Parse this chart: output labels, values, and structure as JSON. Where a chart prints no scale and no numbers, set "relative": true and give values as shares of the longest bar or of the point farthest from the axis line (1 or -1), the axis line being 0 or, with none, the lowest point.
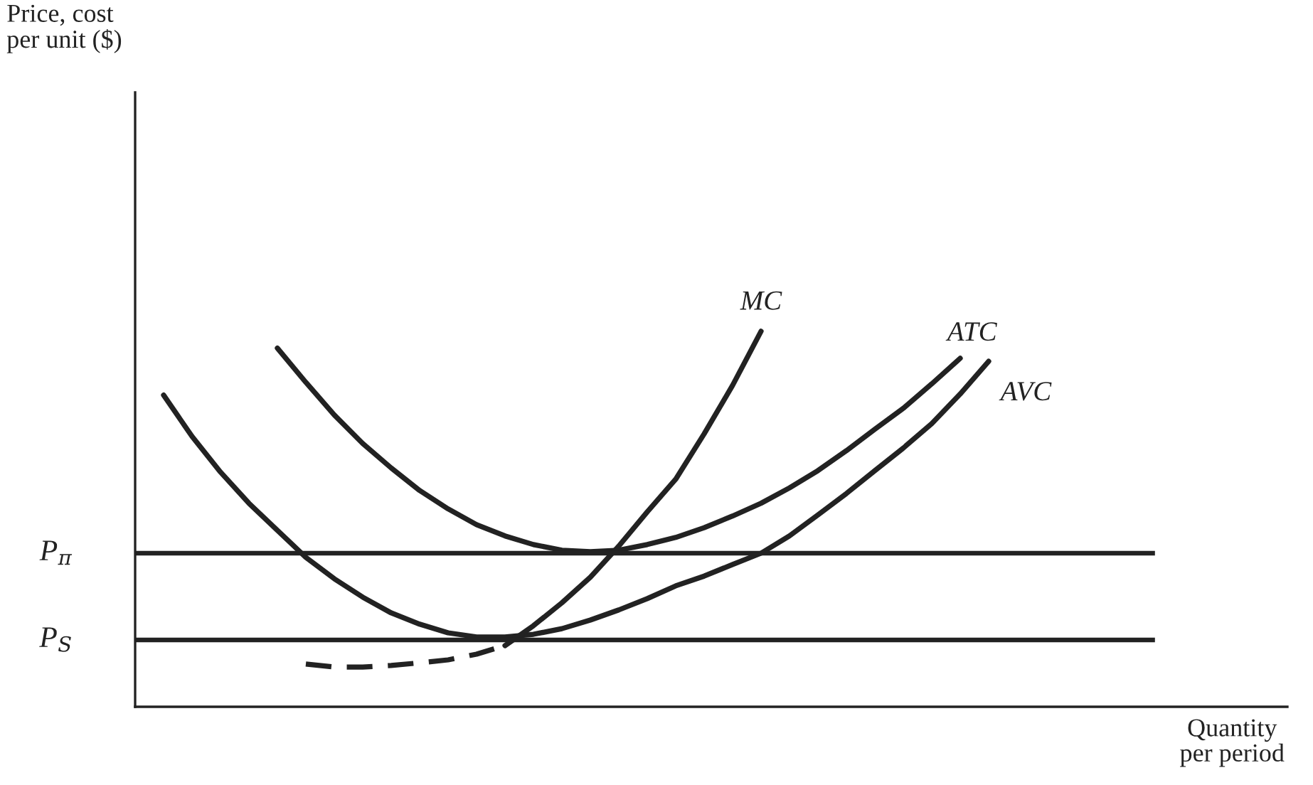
{
  "chart_data": {
    "type": "line",
    "relative": true,
    "xlabel": "Quantity\nper period",
    "categories": [
      null,
      null,
      null,
      null,
      null,
      null,
      null,
      null,
      null,
      null,
      null,
      null,
      null,
      null,
      null,
      null,
      null,
      null,
      null,
      null,
      null,
      null,
      null,
      null,
      null,
      null,
      null,
      null,
      null,
      null,
      null,
      null,
      null,
      null,
      null,
      null,
      null,
      null,
      null,
      null
    ],
    "series": [
      {
        "name": "AVC",
        "color": "#222222",
        "line_style": "solid",
        "values": [
          0.83,
          0.72,
          0.625,
          0.542,
          0.47,
          0.398,
          0.341,
          0.292,
          0.25,
          0.22,
          0.197,
          0.186,
          0.186,
          0.193,
          0.208,
          0.231,
          0.258,
          0.288,
          0.322,
          0.348,
          0.379,
          0.409,
          0.455,
          0.511,
          0.568,
          0.629,
          0.689,
          0.754,
          0.833,
          0.92,
          null,
          null,
          null,
          null,
          null,
          null,
          null,
          null,
          null,
          null
        ]
      },
      {
        "name": "ATC",
        "color": "#222222",
        "line_style": "solid",
        "values": [
          null,
          null,
          null,
          null,
          0.955,
          0.864,
          0.777,
          0.701,
          0.636,
          0.576,
          0.527,
          0.485,
          0.455,
          0.432,
          0.417,
          0.413,
          0.417,
          0.432,
          0.451,
          0.477,
          0.508,
          0.542,
          0.583,
          0.629,
          0.682,
          0.739,
          0.795,
          0.86,
          0.928,
          null,
          null,
          null,
          null,
          null,
          null,
          null,
          null,
          null,
          null,
          null
        ]
      },
      {
        "color": "#222222",
        "line_style": "dashed",
        "values": [
          null,
          null,
          null,
          null,
          null,
          0.114,
          0.106,
          0.106,
          0.11,
          0.117,
          0.125,
          0.14,
          0.163,
          null,
          null,
          null,
          null,
          null,
          null,
          null,
          null,
          null,
          null,
          null,
          null,
          null,
          null,
          null,
          null,
          null,
          null,
          null,
          null,
          null,
          null,
          null,
          null,
          null,
          null,
          null
        ]
      },
      {
        "name": "MC",
        "color": "#222222",
        "line_style": "solid",
        "values": [
          null,
          null,
          null,
          null,
          null,
          null,
          null,
          null,
          null,
          null,
          null,
          null,
          0.163,
          0.216,
          0.277,
          0.345,
          0.428,
          0.519,
          0.606,
          0.727,
          0.856,
          1,
          null,
          null,
          null,
          null,
          null,
          null,
          null,
          null,
          null,
          null,
          null,
          null,
          null,
          null,
          null,
          null,
          null,
          null
        ]
      }
    ],
    "ref_lines": [
      {
        "axis": "y",
        "value": 0.409,
        "label": "P$_{π}$",
        "color": "#222222",
        "line_style": "solid"
      },
      {
        "axis": "y",
        "value": 0.178,
        "label": "P$_{S}$",
        "color": "#222222",
        "line_style": "solid"
      }
    ],
    "annotations": [
      "Price, cost\nper unit ($)"
    ]
  }
}
